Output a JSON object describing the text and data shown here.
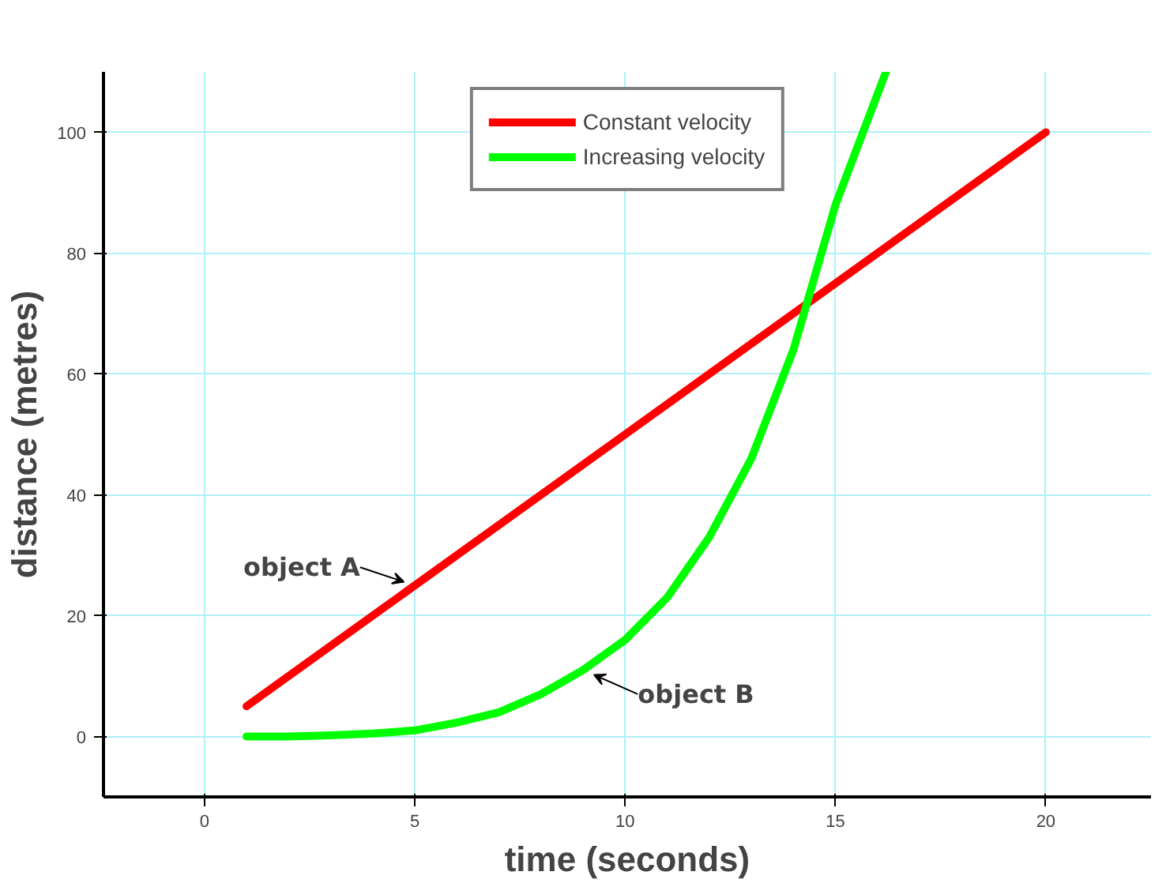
{
  "chart_data": {
    "type": "line",
    "xlabel": "time (seconds)",
    "ylabel": "distance (metres)",
    "xlim": [
      -2.4,
      22.5
    ],
    "ylim": [
      -10,
      110
    ],
    "xticks": [
      0,
      5,
      10,
      15,
      20
    ],
    "yticks": [
      0,
      20,
      40,
      60,
      80,
      100
    ],
    "grid": true,
    "legend": "top",
    "series": [
      {
        "name": "Constant velocity",
        "color": "#ff0000",
        "x": [
          1,
          20
        ],
        "values": [
          5,
          100
        ]
      },
      {
        "name": "Increasing velocity",
        "color": "#00ff00",
        "x": [
          1,
          2,
          3,
          4,
          5,
          6,
          7,
          8,
          9,
          10,
          11,
          12,
          13,
          14,
          15,
          16.2
        ],
        "values": [
          0,
          0,
          0.2,
          0.5,
          1,
          2.3,
          4,
          7,
          11,
          16,
          23,
          33,
          46,
          64,
          88,
          110
        ]
      }
    ],
    "annotations": [
      {
        "text": "object A",
        "x": 5,
        "y": 25
      },
      {
        "text": "object B",
        "x": 9,
        "y": 11
      }
    ]
  }
}
